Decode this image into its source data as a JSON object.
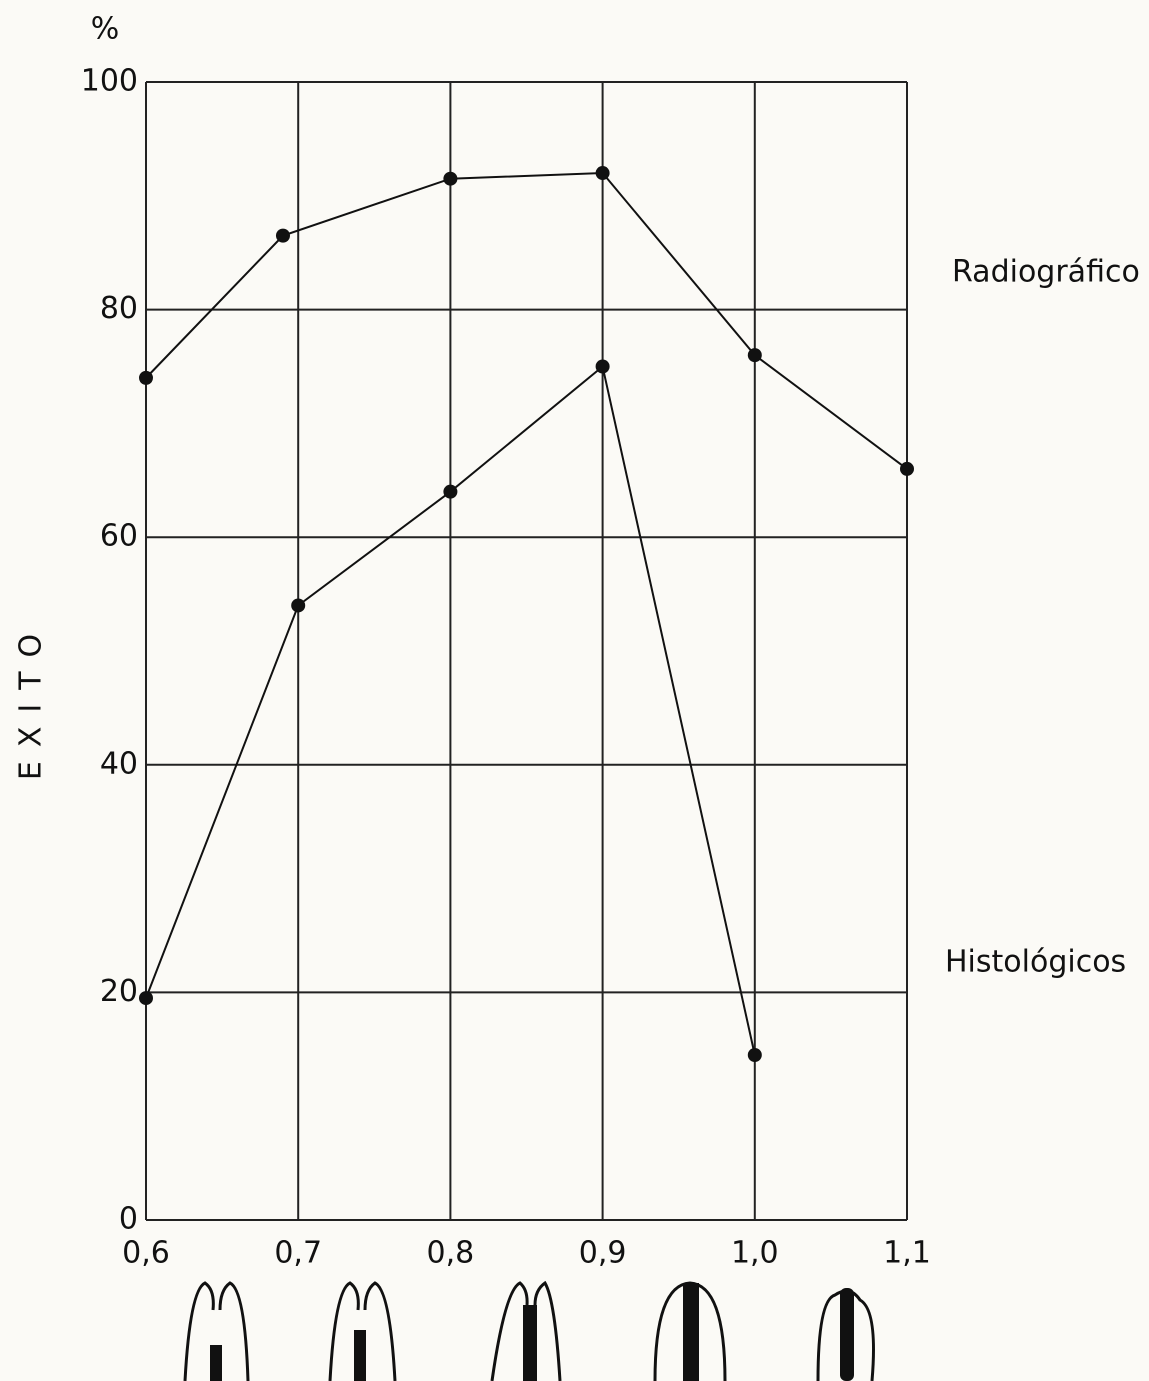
{
  "chart_data": {
    "type": "line",
    "unit_label": "%",
    "ylabel": "EXITO",
    "series": [
      {
        "name": "Radiográfico",
        "color": "#111111",
        "x": [
          0.6,
          0.69,
          0.8,
          0.9,
          1.0,
          1.1
        ],
        "values": [
          74,
          86.5,
          91.5,
          92,
          76,
          66
        ]
      },
      {
        "name": "Histológicos",
        "color": "#111111",
        "x": [
          0.6,
          0.7,
          0.8,
          0.9,
          1.0
        ],
        "values": [
          19.5,
          54,
          64,
          75,
          14.5
        ]
      }
    ],
    "xlim": [
      0.6,
      1.1
    ],
    "xticks": [
      {
        "value": 0.6,
        "label": "0,6"
      },
      {
        "value": 0.7,
        "label": "0,7"
      },
      {
        "value": 0.8,
        "label": "0,8"
      },
      {
        "value": 0.9,
        "label": "0,9"
      },
      {
        "value": 1.0,
        "label": "1,0"
      },
      {
        "value": 1.1,
        "label": "1,1"
      }
    ],
    "ylim": [
      0,
      100
    ],
    "yticks": [
      0,
      20,
      40,
      60,
      80,
      100
    ],
    "grid": true
  }
}
